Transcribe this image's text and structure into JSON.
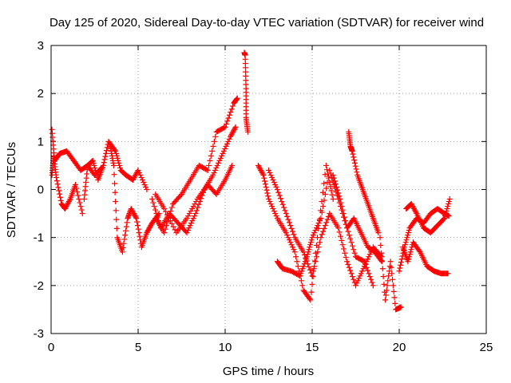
{
  "chart_data": {
    "type": "scatter",
    "title": "Day 125 of 2020, Sidereal Day-to-day VTEC variation (SDTVAR) for receiver wind",
    "xlabel": "GPS time / hours",
    "ylabel": "SDTVAR / TECUs",
    "xlim": [
      0,
      25
    ],
    "ylim": [
      -3,
      3
    ],
    "xticks": [
      0,
      5,
      10,
      15,
      20,
      25
    ],
    "yticks": [
      -3,
      -2,
      -1,
      0,
      1,
      2,
      3
    ],
    "grid": true,
    "marker": "+",
    "series": [
      {
        "name": "SDTVAR",
        "color": "#ff0000",
        "x": [
          0.05,
          0.2,
          0.5,
          0.9,
          1.3,
          1.7,
          2.1,
          2.5,
          2.9
        ],
        "y": [
          1.25,
          0.6,
          0.75,
          0.8,
          0.6,
          0.4,
          0.5,
          0.3,
          0.45
        ]
      },
      {
        "name": "SDTVAR",
        "color": "#ff0000",
        "x": [
          0.05,
          0.15,
          0.3,
          0.6,
          0.8,
          1.1,
          1.4,
          1.8
        ],
        "y": [
          0.3,
          0.7,
          0.25,
          -0.3,
          -0.4,
          -0.2,
          0.1,
          -0.5
        ]
      },
      {
        "name": "SDTVAR",
        "color": "#ff0000",
        "x": [
          1.9,
          2.1,
          2.4,
          2.7,
          3.0,
          3.3,
          3.7,
          4.0,
          4.3,
          4.7,
          5.0,
          5.5
        ],
        "y": [
          -0.2,
          0.5,
          0.6,
          0.2,
          0.5,
          1.0,
          0.8,
          0.4,
          0.3,
          0.2,
          0.4,
          0.0
        ]
      },
      {
        "name": "SDTVAR",
        "color": "#ff0000",
        "x": [
          3.4,
          3.6,
          3.8,
          4.1,
          4.4,
          4.6,
          4.9,
          5.2,
          5.5,
          5.8,
          6.2
        ],
        "y": [
          0.9,
          0.5,
          -1.0,
          -1.3,
          -0.6,
          -0.4,
          -0.6,
          -1.2,
          -0.9,
          -0.7,
          -0.5
        ]
      },
      {
        "name": "SDTVAR",
        "color": "#ff0000",
        "x": [
          6.0,
          6.5,
          7.0,
          7.5,
          8.0,
          8.5,
          9.0,
          9.5,
          10.0,
          10.5,
          10.7
        ],
        "y": [
          -0.6,
          -0.9,
          -0.3,
          -0.1,
          0.2,
          0.5,
          0.4,
          1.2,
          1.3,
          1.8,
          1.9
        ]
      },
      {
        "name": "SDTVAR",
        "color": "#ff0000",
        "x": [
          5.8,
          6.3,
          6.8,
          7.3,
          7.8,
          8.3,
          8.8,
          9.3,
          9.8,
          10.3,
          10.6
        ],
        "y": [
          -0.2,
          -0.8,
          -0.5,
          -0.7,
          -0.9,
          -0.5,
          0.0,
          0.3,
          0.7,
          1.1,
          1.3
        ]
      },
      {
        "name": "SDTVAR",
        "color": "#ff0000",
        "x": [
          6.0,
          6.5,
          7.2,
          7.8,
          8.4,
          9.0,
          9.5,
          10.0,
          10.4
        ],
        "y": [
          -0.1,
          -0.4,
          -0.9,
          -0.6,
          -0.2,
          0.1,
          -0.1,
          0.2,
          0.5
        ]
      },
      {
        "name": "SDTVAR",
        "color": "#ff0000",
        "x": [
          11.1,
          11.15,
          11.2,
          11.2,
          11.3
        ],
        "y": [
          2.85,
          2.8,
          2.1,
          1.5,
          1.2
        ]
      },
      {
        "name": "SDTVAR",
        "color": "#ff0000",
        "x": [
          11.9,
          12.2,
          12.5,
          13.0,
          13.5,
          14.0,
          14.5,
          14.9,
          15.3,
          15.8,
          16.2
        ],
        "y": [
          0.5,
          0.3,
          -0.2,
          -0.6,
          -0.9,
          -1.3,
          -2.1,
          -2.3,
          -1.0,
          0.5,
          -0.2
        ]
      },
      {
        "name": "SDTVAR",
        "color": "#ff0000",
        "x": [
          13.0,
          13.3,
          13.8,
          14.3,
          14.7,
          15.0,
          15.5,
          16.0,
          16.5,
          17.0,
          17.5,
          18.0,
          18.5
        ],
        "y": [
          -1.5,
          -1.65,
          -1.7,
          -1.8,
          -1.4,
          -1.0,
          -0.6,
          0.4,
          -0.2,
          -0.8,
          -1.4,
          -1.5,
          -2.0
        ]
      },
      {
        "name": "SDTVAR",
        "color": "#ff0000",
        "x": [
          12.5,
          13.0,
          13.5,
          14.0,
          14.5,
          15.0,
          15.5,
          16.0,
          16.5,
          17.0,
          17.5,
          18.0,
          18.5,
          19.0
        ],
        "y": [
          0.4,
          0.0,
          -0.5,
          -1.0,
          -1.3,
          -1.8,
          -1.0,
          -0.5,
          -0.8,
          -1.5,
          -2.0,
          -1.6,
          -1.2,
          -1.4
        ]
      },
      {
        "name": "SDTVAR",
        "color": "#ff0000",
        "x": [
          16.2,
          16.6,
          17.0,
          17.4,
          17.8,
          18.2,
          18.6,
          19.0
        ],
        "y": [
          0.3,
          -0.2,
          -0.8,
          -0.6,
          -0.9,
          -1.2,
          -1.3,
          -1.5
        ]
      },
      {
        "name": "SDTVAR",
        "color": "#ff0000",
        "x": [
          17.1,
          17.2,
          17.3,
          17.6,
          17.9,
          18.2,
          18.5,
          18.8
        ],
        "y": [
          1.2,
          0.9,
          0.8,
          0.3,
          0.0,
          -0.3,
          -0.6,
          -0.9
        ]
      },
      {
        "name": "SDTVAR",
        "color": "#ff0000",
        "x": [
          18.9,
          19.2,
          19.5,
          19.8,
          20.1
        ],
        "y": [
          -1.0,
          -2.3,
          -1.5,
          -2.5,
          -2.45
        ]
      },
      {
        "name": "SDTVAR",
        "color": "#ff0000",
        "x": [
          20.0,
          20.3,
          20.6,
          21.0,
          21.4,
          21.8,
          22.2,
          22.6,
          22.85
        ],
        "y": [
          -1.7,
          -1.2,
          -0.8,
          -0.6,
          -0.7,
          -0.5,
          -0.4,
          -0.5,
          -0.55
        ]
      },
      {
        "name": "SDTVAR",
        "color": "#ff0000",
        "x": [
          20.2,
          20.5,
          20.8,
          21.2,
          21.6,
          22.0,
          22.4,
          22.8
        ],
        "y": [
          -1.2,
          -1.5,
          -1.1,
          -1.3,
          -1.6,
          -1.7,
          -1.75,
          -1.75
        ]
      },
      {
        "name": "SDTVAR",
        "color": "#ff0000",
        "x": [
          20.4,
          20.7,
          21.0,
          21.4,
          21.8,
          22.2,
          22.6,
          22.9
        ],
        "y": [
          -0.4,
          -0.3,
          -0.5,
          -0.8,
          -0.9,
          -0.75,
          -0.6,
          -0.2
        ]
      }
    ]
  }
}
